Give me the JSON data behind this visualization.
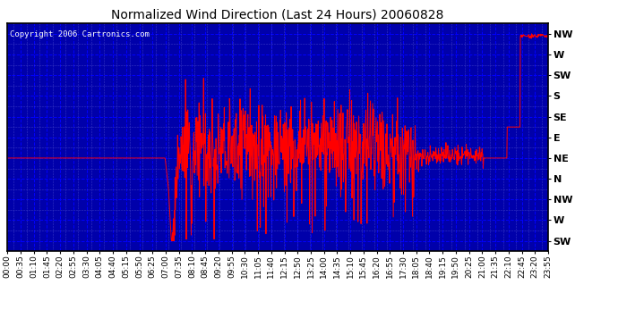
{
  "title": "Normalized Wind Direction (Last 24 Hours) 20060828",
  "copyright": "Copyright 2006 Cartronics.com",
  "background_color": "#0000aa",
  "outer_bg_color": "#ffffff",
  "line_color": "#ff0000",
  "grid_major_color": "#0000ff",
  "grid_minor_color": "#4444cc",
  "text_color": "#000000",
  "title_color": "#000000",
  "ytick_labels": [
    "NW",
    "W",
    "SW",
    "S",
    "SE",
    "E",
    "NE",
    "N",
    "NW",
    "W",
    "SW"
  ],
  "ytick_values": [
    10,
    9,
    8,
    7,
    6,
    5,
    4,
    3,
    2,
    1,
    0
  ],
  "xtick_labels": [
    "00:00",
    "00:35",
    "01:10",
    "01:45",
    "02:20",
    "02:55",
    "03:30",
    "04:05",
    "04:40",
    "05:15",
    "05:50",
    "06:25",
    "07:00",
    "07:35",
    "08:10",
    "08:45",
    "09:20",
    "09:55",
    "10:30",
    "11:05",
    "11:40",
    "12:15",
    "12:50",
    "13:25",
    "14:00",
    "14:35",
    "15:10",
    "15:45",
    "16:20",
    "16:55",
    "17:30",
    "18:05",
    "18:40",
    "19:15",
    "19:50",
    "20:25",
    "21:00",
    "21:35",
    "22:10",
    "22:45",
    "23:20",
    "23:55"
  ],
  "ylim": [
    -0.5,
    10.5
  ],
  "xlim": [
    0,
    24
  ],
  "copyright_fontsize": 6.5,
  "title_fontsize": 10,
  "tick_fontsize": 6.5,
  "ytick_fontsize": 8
}
